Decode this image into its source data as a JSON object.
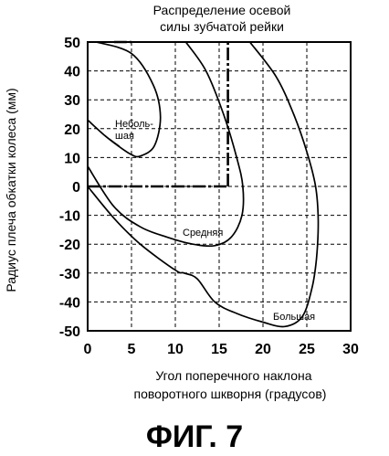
{
  "chart_data": {
    "type": "line",
    "title": [
      "Распределение осевой",
      "силы зубчатой рейки"
    ],
    "xlabel": [
      "Угол поперечного наклона",
      "поворотного шкворня (градусов)"
    ],
    "ylabel": "Радиус плеча обкатки колеса (мм)",
    "xlim": [
      0,
      30
    ],
    "ylim": [
      -50,
      50
    ],
    "xticks": [
      0,
      5,
      10,
      15,
      20,
      25,
      30
    ],
    "yticks": [
      -50,
      -40,
      -30,
      -20,
      -10,
      0,
      10,
      20,
      30,
      40,
      50
    ],
    "grid": true,
    "series": [
      {
        "name": "Небольшая",
        "label_lines": [
          "Неболь-",
          "шая"
        ],
        "points": [
          [
            1,
            50
          ],
          [
            5,
            46
          ],
          [
            7.5,
            35
          ],
          [
            8.3,
            24
          ],
          [
            7.6,
            14
          ],
          [
            6,
            10.5
          ],
          [
            5,
            11
          ],
          [
            3.5,
            14
          ],
          [
            2,
            17.5
          ],
          [
            0,
            23
          ]
        ]
      },
      {
        "name": "Средняя",
        "label_lines": [
          "Средняя"
        ],
        "points": [
          [
            11.2,
            50
          ],
          [
            13.5,
            40
          ],
          [
            15.5,
            25
          ],
          [
            17,
            10
          ],
          [
            17.7,
            0
          ],
          [
            17.6,
            -10
          ],
          [
            16.4,
            -17.5
          ],
          [
            14.5,
            -20.5
          ],
          [
            12,
            -20
          ],
          [
            9,
            -17.5
          ],
          [
            6,
            -14
          ],
          [
            3,
            -7
          ],
          [
            0,
            7
          ]
        ]
      },
      {
        "name": "Большая",
        "label_lines": [
          "Большая"
        ],
        "points": [
          [
            18.5,
            50
          ],
          [
            21.5,
            38
          ],
          [
            23.5,
            25
          ],
          [
            25,
            12
          ],
          [
            26,
            0
          ],
          [
            26.3,
            -12
          ],
          [
            26.1,
            -25
          ],
          [
            25.6,
            -35
          ],
          [
            24.5,
            -45
          ],
          [
            22.5,
            -48.5
          ],
          [
            20,
            -47
          ],
          [
            17,
            -44
          ],
          [
            14.5,
            -40
          ],
          [
            12.5,
            -32
          ],
          [
            11,
            -30
          ],
          [
            10,
            -29
          ],
          [
            6,
            -20
          ],
          [
            3,
            -11
          ],
          [
            0,
            0
          ]
        ]
      }
    ],
    "boundary": {
      "lines": [
        [
          [
            3,
            50
          ],
          [
            5,
            50
          ]
        ],
        [
          [
            0,
            0
          ],
          [
            16,
            0
          ]
        ],
        [
          [
            16,
            0
          ],
          [
            16,
            50
          ]
        ]
      ]
    }
  },
  "figure_label": "ФИГ. 7"
}
